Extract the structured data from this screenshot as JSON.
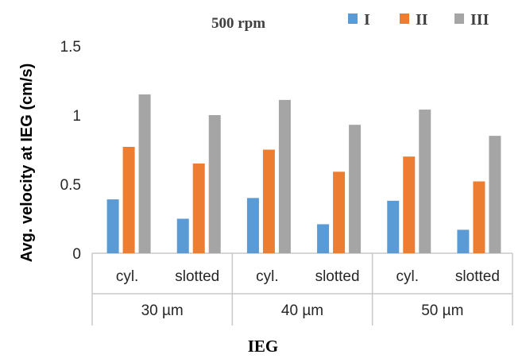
{
  "chart_data": {
    "type": "bar",
    "annotation": "500 rpm",
    "ylabel": "Avg. velocity at IEG (cm/s)",
    "xlabel": "IEG",
    "ylim": [
      0,
      1.5
    ],
    "yticks": [
      "0",
      "0.5",
      "1",
      "1.5"
    ],
    "ytick_values": [
      0,
      0.5,
      1,
      1.5
    ],
    "groups": [
      "30 µm",
      "40 µm",
      "50 µm"
    ],
    "categories": [
      "cyl.",
      "slotted",
      "cyl.",
      "slotted",
      "cyl.",
      "slotted"
    ],
    "series": [
      {
        "name": "I",
        "color": "#5b9bd5",
        "values": [
          0.39,
          0.25,
          0.4,
          0.21,
          0.38,
          0.17
        ]
      },
      {
        "name": "II",
        "color": "#ed7d31",
        "values": [
          0.77,
          0.65,
          0.75,
          0.59,
          0.7,
          0.52
        ]
      },
      {
        "name": "III",
        "color": "#a5a5a5",
        "values": [
          1.15,
          1.0,
          1.11,
          0.93,
          1.04,
          0.85
        ]
      }
    ],
    "grid": false,
    "legend": "top-right"
  }
}
